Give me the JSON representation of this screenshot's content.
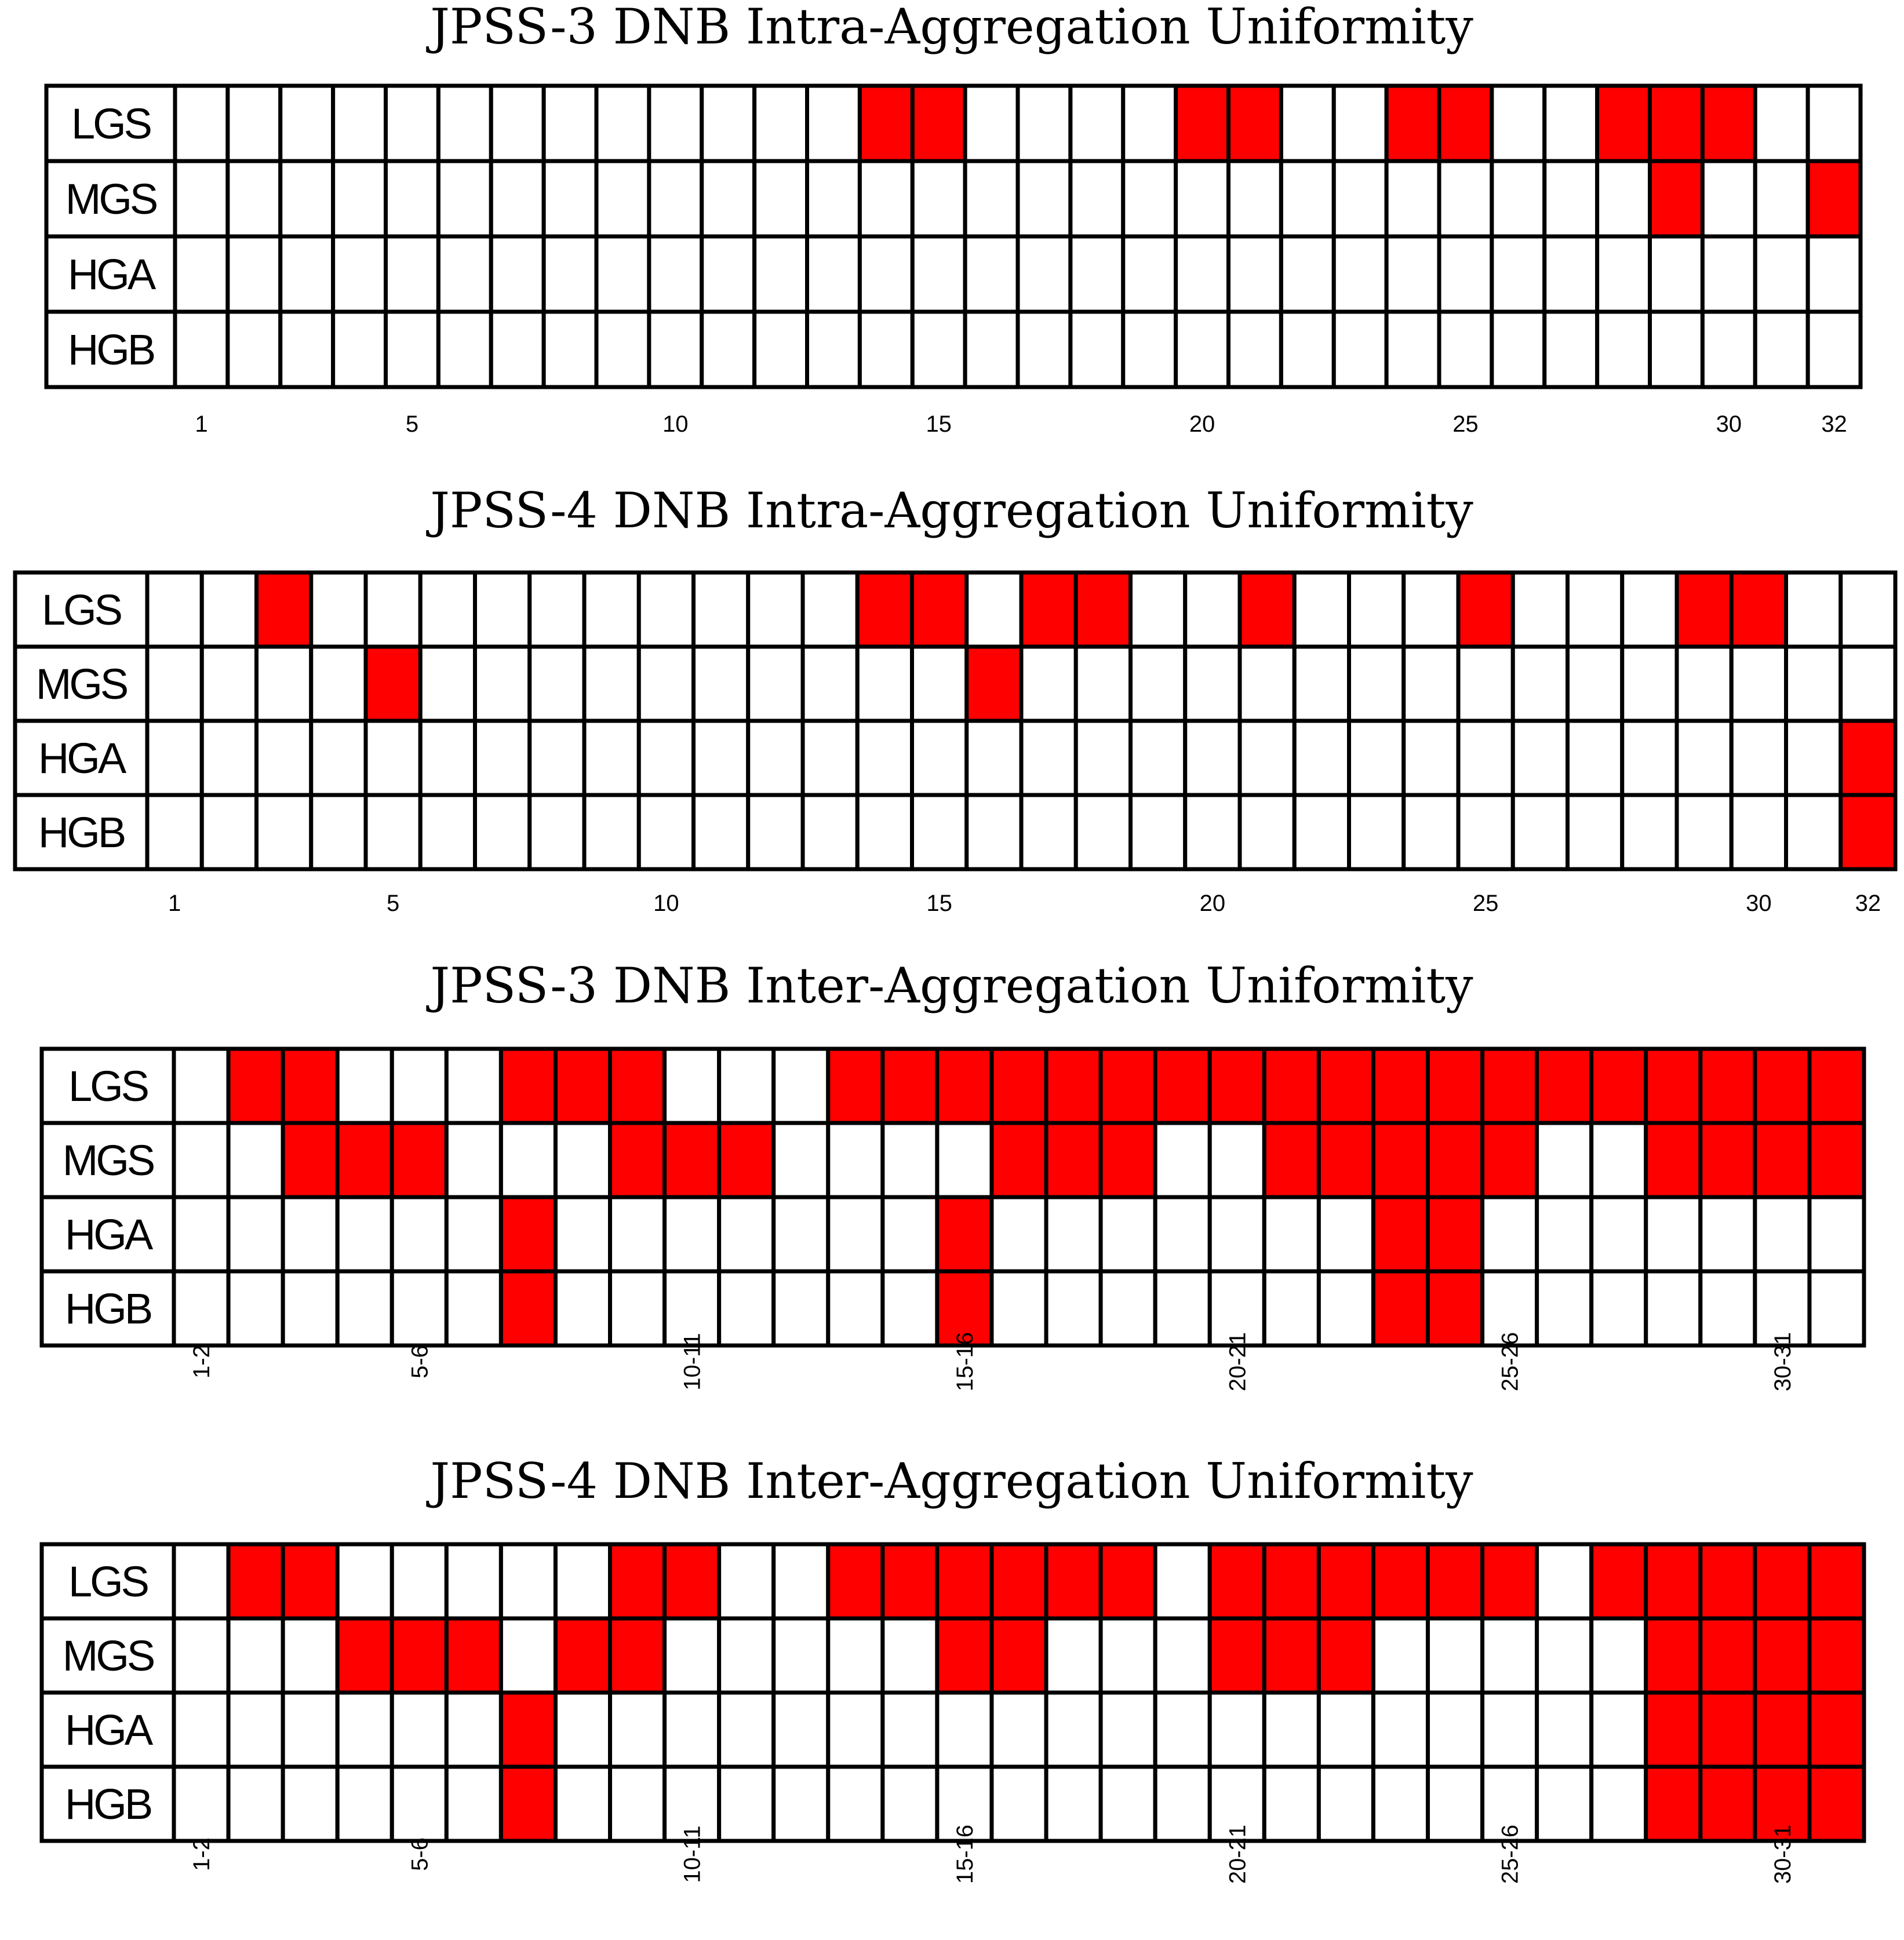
{
  "colors": {
    "flagged": "#ff0000",
    "clear": "#ffffff",
    "grid": "#000000"
  },
  "chart_data": [
    {
      "type": "heatmap",
      "title": "JPSS-3 DNB Intra-Aggregation Uniformity",
      "rows": [
        "LGS",
        "MGS",
        "HGA",
        "HGB"
      ],
      "columns": [
        1,
        2,
        3,
        4,
        5,
        6,
        7,
        8,
        9,
        10,
        11,
        12,
        13,
        14,
        15,
        16,
        17,
        18,
        19,
        20,
        21,
        22,
        23,
        24,
        25,
        26,
        27,
        28,
        29,
        30,
        31,
        32
      ],
      "tick_labels": [
        {
          "column": 1,
          "label": "1"
        },
        {
          "column": 5,
          "label": "5"
        },
        {
          "column": 10,
          "label": "10"
        },
        {
          "column": 15,
          "label": "15"
        },
        {
          "column": 20,
          "label": "20"
        },
        {
          "column": 25,
          "label": "25"
        },
        {
          "column": 30,
          "label": "30"
        },
        {
          "column": 32,
          "label": "32"
        }
      ],
      "flagged": {
        "LGS": [
          14,
          15,
          20,
          21,
          24,
          25,
          28,
          29,
          30
        ],
        "MGS": [
          29,
          32
        ],
        "HGA": [],
        "HGB": []
      }
    },
    {
      "type": "heatmap",
      "title": "JPSS-4 DNB Intra-Aggregation Uniformity",
      "rows": [
        "LGS",
        "MGS",
        "HGA",
        "HGB"
      ],
      "columns": [
        1,
        2,
        3,
        4,
        5,
        6,
        7,
        8,
        9,
        10,
        11,
        12,
        13,
        14,
        15,
        16,
        17,
        18,
        19,
        20,
        21,
        22,
        23,
        24,
        25,
        26,
        27,
        28,
        29,
        30,
        31,
        32
      ],
      "tick_labels": [
        {
          "column": 1,
          "label": "1"
        },
        {
          "column": 5,
          "label": "5"
        },
        {
          "column": 10,
          "label": "10"
        },
        {
          "column": 15,
          "label": "15"
        },
        {
          "column": 20,
          "label": "20"
        },
        {
          "column": 25,
          "label": "25"
        },
        {
          "column": 30,
          "label": "30"
        },
        {
          "column": 32,
          "label": "32"
        }
      ],
      "flagged": {
        "LGS": [
          3,
          14,
          15,
          17,
          18,
          21,
          25,
          29,
          30
        ],
        "MGS": [
          5,
          16
        ],
        "HGA": [
          32
        ],
        "HGB": [
          32
        ]
      }
    },
    {
      "type": "heatmap",
      "title": "JPSS-3 DNB Inter-Aggregation Uniformity",
      "rows": [
        "LGS",
        "MGS",
        "HGA",
        "HGB"
      ],
      "columns": [
        "1-2",
        "2-3",
        "3-4",
        "4-5",
        "5-6",
        "6-7",
        "7-8",
        "8-9",
        "9-10",
        "10-11",
        "11-12",
        "12-13",
        "13-14",
        "14-15",
        "15-16",
        "16-17",
        "17-18",
        "18-19",
        "19-20",
        "20-21",
        "21-22",
        "22-23",
        "23-24",
        "24-25",
        "25-26",
        "26-27",
        "27-28",
        "28-29",
        "29-30",
        "30-31",
        "31-32"
      ],
      "tick_labels": [
        {
          "column": 1,
          "label": "1-2"
        },
        {
          "column": 5,
          "label": "5-6"
        },
        {
          "column": 10,
          "label": "10-11"
        },
        {
          "column": 15,
          "label": "15-16"
        },
        {
          "column": 20,
          "label": "20-21"
        },
        {
          "column": 25,
          "label": "25-26"
        },
        {
          "column": 30,
          "label": "30-31"
        }
      ],
      "flagged": {
        "LGS": [
          2,
          3,
          7,
          8,
          9,
          13,
          14,
          15,
          16,
          17,
          18,
          19,
          20,
          21,
          22,
          23,
          24,
          25,
          26,
          27,
          28,
          29,
          30,
          31
        ],
        "MGS": [
          3,
          4,
          5,
          9,
          10,
          11,
          16,
          17,
          18,
          21,
          22,
          23,
          24,
          25,
          28,
          29,
          30,
          31
        ],
        "HGA": [
          7,
          15,
          23,
          24
        ],
        "HGB": [
          7,
          15,
          23,
          24
        ]
      }
    },
    {
      "type": "heatmap",
      "title": "JPSS-4 DNB Inter-Aggregation Uniformity",
      "rows": [
        "LGS",
        "MGS",
        "HGA",
        "HGB"
      ],
      "columns": [
        "1-2",
        "2-3",
        "3-4",
        "4-5",
        "5-6",
        "6-7",
        "7-8",
        "8-9",
        "9-10",
        "10-11",
        "11-12",
        "12-13",
        "13-14",
        "14-15",
        "15-16",
        "16-17",
        "17-18",
        "18-19",
        "19-20",
        "20-21",
        "21-22",
        "22-23",
        "23-24",
        "24-25",
        "25-26",
        "26-27",
        "27-28",
        "28-29",
        "29-30",
        "30-31",
        "31-32"
      ],
      "tick_labels": [
        {
          "column": 1,
          "label": "1-2"
        },
        {
          "column": 5,
          "label": "5-6"
        },
        {
          "column": 10,
          "label": "10-11"
        },
        {
          "column": 15,
          "label": "15-16"
        },
        {
          "column": 20,
          "label": "20-21"
        },
        {
          "column": 25,
          "label": "25-26"
        },
        {
          "column": 30,
          "label": "30-31"
        }
      ],
      "flagged": {
        "LGS": [
          2,
          3,
          9,
          10,
          13,
          14,
          15,
          16,
          17,
          18,
          20,
          21,
          22,
          23,
          24,
          25,
          27,
          28,
          29,
          30,
          31
        ],
        "MGS": [
          4,
          5,
          6,
          8,
          9,
          15,
          16,
          20,
          21,
          22,
          28,
          29,
          30,
          31
        ],
        "HGA": [
          7,
          28,
          29,
          30,
          31
        ],
        "HGB": [
          7,
          28,
          29,
          30,
          31
        ]
      }
    }
  ]
}
